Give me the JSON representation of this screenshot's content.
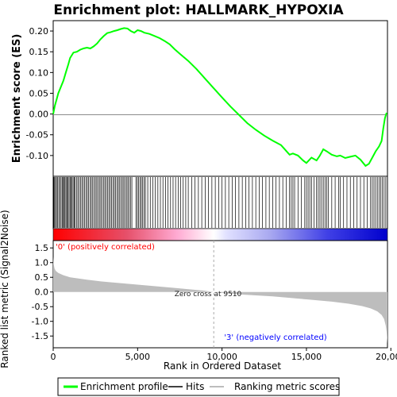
{
  "chart_data": {
    "type": "line",
    "title": "Enrichment plot: HALLMARK_HYPOXIA",
    "xlabel": "Rank in Ordered Dataset",
    "x_ticks": [
      "0",
      "5,000",
      "10,000",
      "15,000",
      "20,000"
    ],
    "xlim": [
      0,
      19800
    ],
    "es_panel": {
      "ylabel": "Enrichment score (ES)",
      "ylim": [
        -0.15,
        0.225
      ],
      "y_ticks": [
        "0.20",
        "0.15",
        "0.10",
        "0.05",
        "0.00",
        "-0.05",
        "-0.10"
      ],
      "series": [
        {
          "name": "Enrichment profile",
          "color": "#00ff00",
          "x": [
            0,
            100,
            200,
            300,
            450,
            600,
            750,
            900,
            1000,
            1200,
            1400,
            1600,
            1800,
            2000,
            2200,
            2400,
            2600,
            2800,
            3000,
            3200,
            3400,
            3600,
            3800,
            4000,
            4200,
            4400,
            4600,
            4800,
            5000,
            5200,
            5400,
            5700,
            6000,
            6300,
            6600,
            6900,
            7200,
            7500,
            8000,
            8500,
            9000,
            9510,
            10000,
            10500,
            11000,
            11500,
            12000,
            12500,
            13000,
            13500,
            14000,
            14200,
            14500,
            14800,
            15000,
            15300,
            15600,
            15800,
            16000,
            16200,
            16500,
            16800,
            17000,
            17300,
            17600,
            17900,
            18200,
            18500,
            18700,
            18900,
            19100,
            19300,
            19450,
            19550,
            19650,
            19750
          ],
          "y": [
            0.0,
            0.02,
            0.035,
            0.05,
            0.065,
            0.08,
            0.1,
            0.12,
            0.135,
            0.148,
            0.15,
            0.155,
            0.158,
            0.16,
            0.158,
            0.163,
            0.17,
            0.18,
            0.188,
            0.195,
            0.197,
            0.2,
            0.202,
            0.205,
            0.207,
            0.206,
            0.2,
            0.196,
            0.202,
            0.2,
            0.196,
            0.193,
            0.188,
            0.183,
            0.176,
            0.168,
            0.156,
            0.145,
            0.128,
            0.108,
            0.085,
            0.062,
            0.04,
            0.018,
            -0.002,
            -0.022,
            -0.038,
            -0.052,
            -0.064,
            -0.075,
            -0.098,
            -0.095,
            -0.1,
            -0.112,
            -0.118,
            -0.105,
            -0.112,
            -0.1,
            -0.085,
            -0.09,
            -0.098,
            -0.102,
            -0.1,
            -0.106,
            -0.103,
            -0.1,
            -0.11,
            -0.125,
            -0.12,
            -0.105,
            -0.09,
            -0.078,
            -0.065,
            -0.035,
            -0.01,
            0.003
          ]
        }
      ]
    },
    "hits_panel": {
      "series_name": "Hits",
      "hit_ranks": [
        35,
        80,
        140,
        190,
        260,
        330,
        400,
        470,
        540,
        600,
        650,
        700,
        760,
        820,
        880,
        940,
        1000,
        1060,
        1120,
        1180,
        1240,
        1300,
        1380,
        1460,
        1540,
        1620,
        1700,
        1780,
        1860,
        1940,
        2020,
        2100,
        2180,
        2260,
        2340,
        2420,
        2500,
        2580,
        2660,
        2740,
        2820,
        2900,
        2980,
        3060,
        3140,
        3220,
        3300,
        3380,
        3460,
        3540,
        3620,
        3700,
        3780,
        3860,
        3940,
        4020,
        4100,
        4180,
        4260,
        4340,
        4420,
        4500,
        4580,
        4660,
        4900,
        4980,
        5060,
        5140,
        5220,
        5300,
        5380,
        5460,
        5600,
        5750,
        5900,
        6050,
        6200,
        6350,
        6500,
        6650,
        6800,
        6950,
        7100,
        7250,
        7400,
        7550,
        7700,
        7850,
        8000,
        8200,
        8400,
        8600,
        8800,
        9000,
        9200,
        9400,
        9600,
        9800,
        10000,
        10200,
        10400,
        10600,
        10800,
        11000,
        11200,
        11400,
        11600,
        11800,
        12000,
        12200,
        12400,
        12600,
        12800,
        13000,
        13200,
        13400,
        13600,
        13800,
        14000,
        14100,
        14200,
        14300,
        14500,
        14700,
        14900,
        15000,
        15100,
        15200,
        15300,
        15450,
        15600,
        15700,
        15800,
        15900,
        16000,
        16100,
        16200,
        16300,
        16500,
        16700,
        16900,
        17000,
        17200,
        17400,
        17600,
        17800,
        18000,
        18200,
        18400,
        18600,
        18800,
        18900,
        19000,
        19100,
        19200,
        19300,
        19400,
        19500,
        19600,
        19700
      ]
    },
    "rank_metric_panel": {
      "ylabel": "Ranked list metric (Signal2Noise)",
      "series_name": "Ranking metric scores",
      "ylim": [
        -1.9,
        1.75
      ],
      "y_ticks": [
        "1.5",
        "1.0",
        "0.5",
        "0.0",
        "-0.5",
        "-1.0",
        "-1.5"
      ],
      "x": [
        0,
        30,
        80,
        150,
        300,
        600,
        1000,
        2000,
        3000,
        5000,
        7000,
        9000,
        9510,
        11000,
        13000,
        15000,
        16500,
        17500,
        18300,
        18800,
        19200,
        19450,
        19600,
        19700,
        19750,
        19800
      ],
      "y": [
        1.2,
        0.95,
        0.8,
        0.72,
        0.65,
        0.57,
        0.5,
        0.42,
        0.35,
        0.25,
        0.15,
        0.04,
        0.0,
        -0.08,
        -0.15,
        -0.25,
        -0.33,
        -0.4,
        -0.48,
        -0.56,
        -0.66,
        -0.78,
        -0.92,
        -1.15,
        -1.35,
        -1.75
      ],
      "zero_cross_label": "Zero cross at 9510",
      "zero_cross_rank": 9510,
      "positive_label": "'0' (positively correlated)",
      "negative_label": "'3' (negatively correlated)"
    },
    "legend": {
      "placement": "bottom",
      "items": [
        "Enrichment profile",
        "Hits",
        "Ranking metric scores"
      ]
    }
  }
}
